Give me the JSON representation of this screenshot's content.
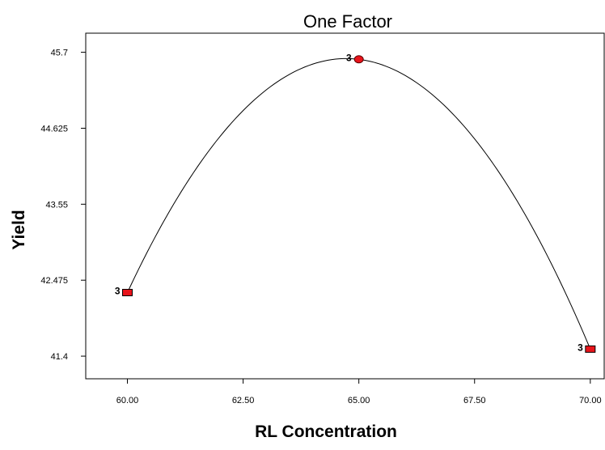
{
  "chart_data": {
    "type": "line",
    "title": "One Factor",
    "xlabel": "RL Concentration",
    "ylabel": "Yield",
    "xlim": [
      59.1,
      70.3
    ],
    "ylim": [
      41.08,
      45.97
    ],
    "x_ticks": [
      "60.00",
      "62.50",
      "65.00",
      "67.50",
      "70.00"
    ],
    "y_ticks": [
      "41.4",
      "42.475",
      "43.55",
      "44.625",
      "45.7"
    ],
    "grid": false,
    "curve": {
      "type": "quadratic",
      "through": [
        [
          60.0,
          42.3
        ],
        [
          65.0,
          45.6
        ],
        [
          70.0,
          41.5
        ]
      ]
    },
    "series": [
      {
        "points": [
          {
            "x": 60.0,
            "y": 42.3,
            "label": "3",
            "marker": "square"
          },
          {
            "x": 65.0,
            "y": 45.6,
            "label": "3",
            "marker": "circle"
          },
          {
            "x": 70.0,
            "y": 41.5,
            "label": "3",
            "marker": "square"
          }
        ]
      }
    ],
    "marker_color": "#e8141b",
    "line_color": "#000000"
  }
}
